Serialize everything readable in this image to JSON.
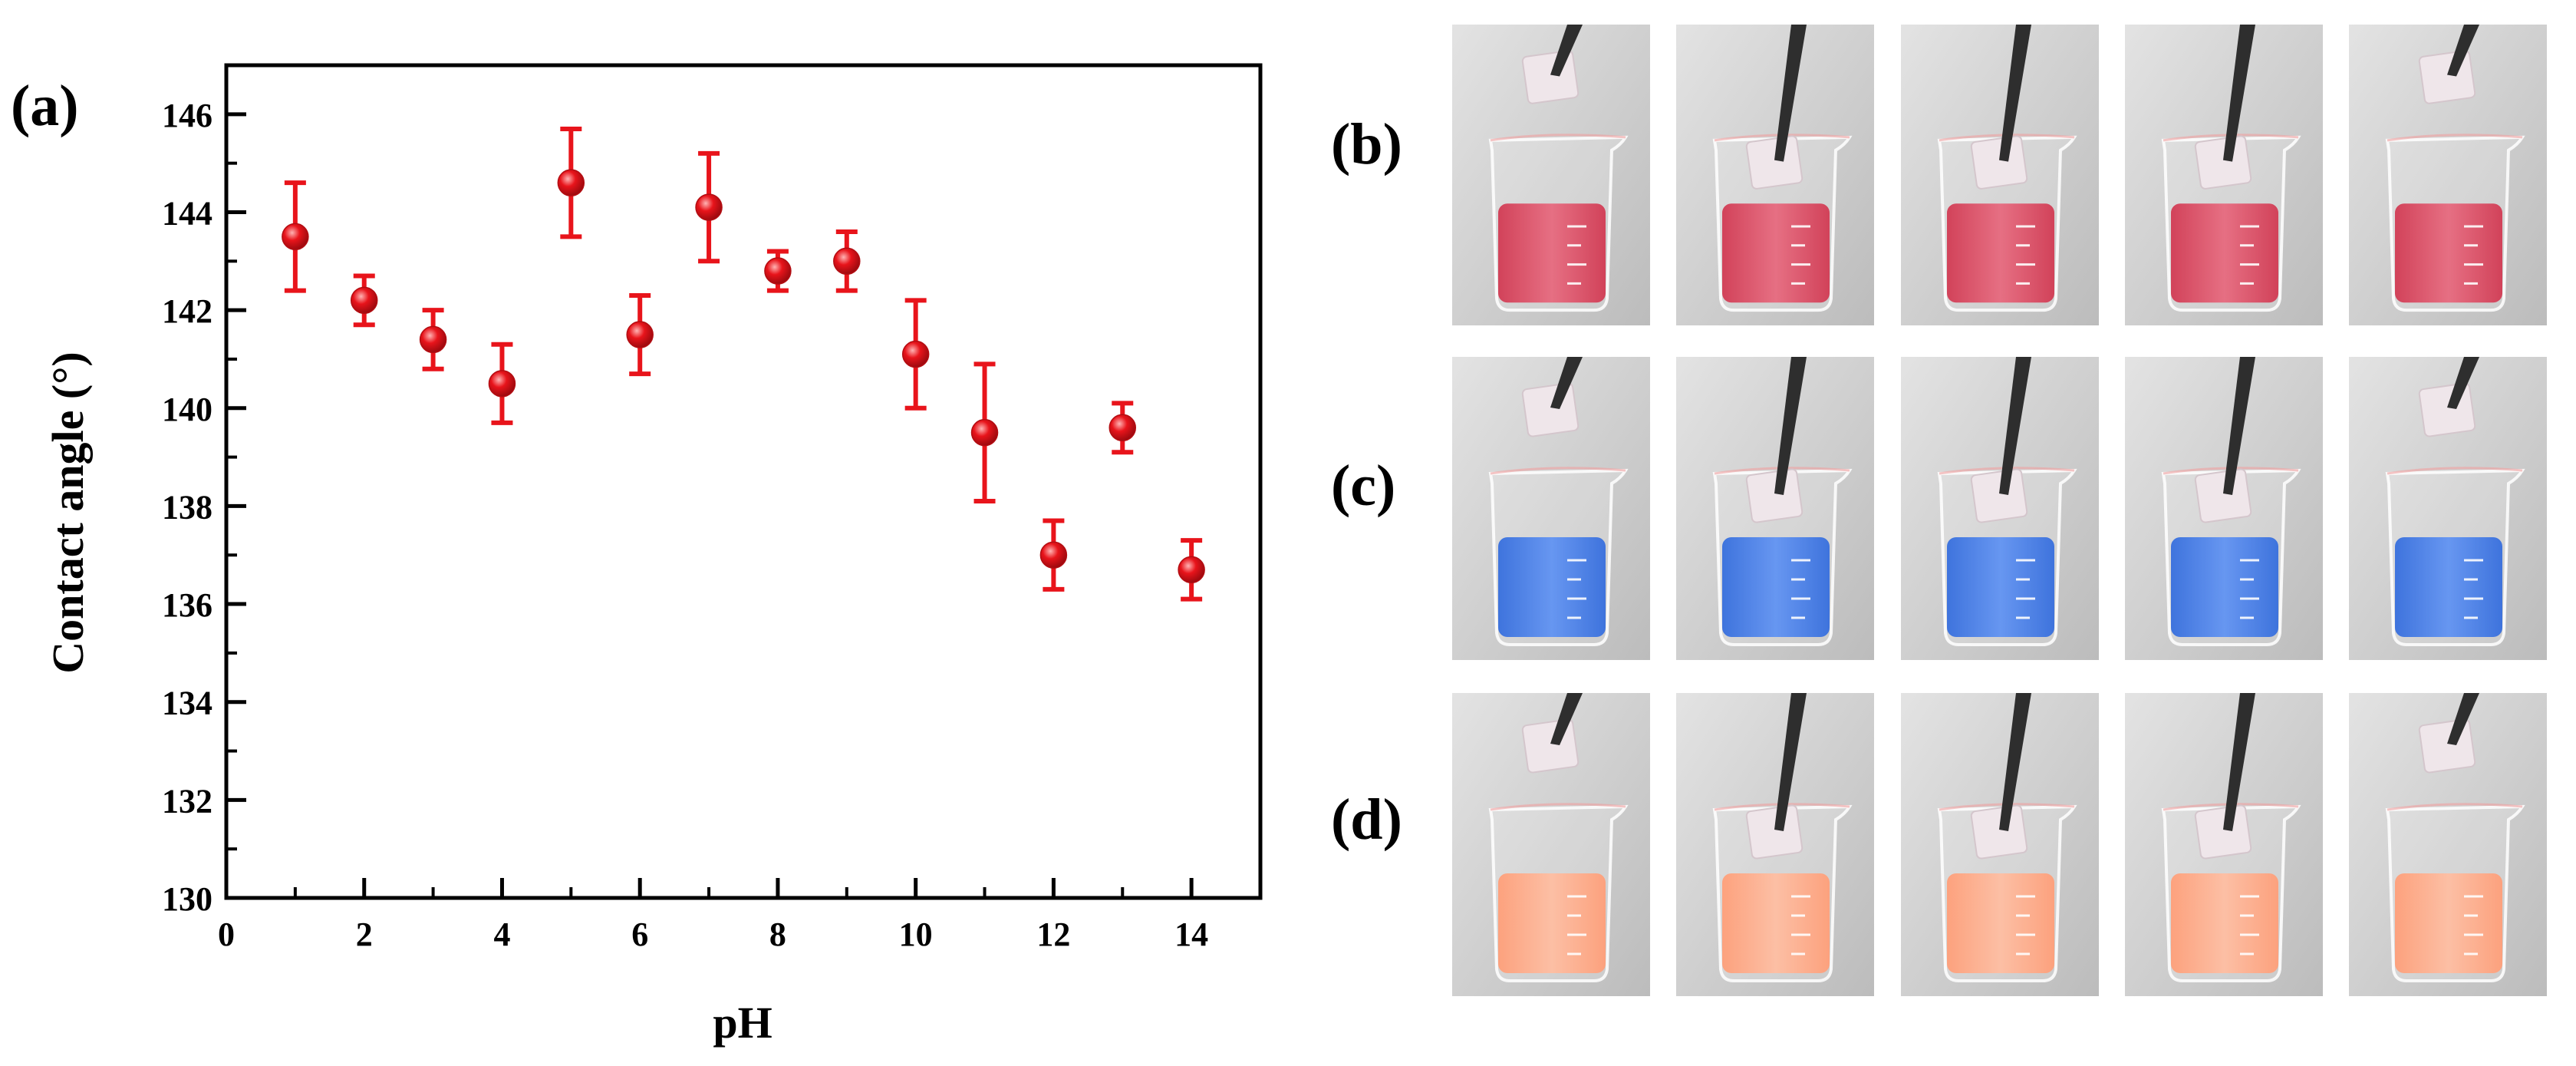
{
  "panels": {
    "a": "(a)",
    "b": "(b)",
    "c": "(c)",
    "d": "(d)"
  },
  "chart_data": {
    "type": "scatter",
    "title": "",
    "xlabel": "pH",
    "ylabel": "Contact angle (°)",
    "xlim": [
      0,
      15
    ],
    "ylim": [
      130,
      147
    ],
    "xticks": [
      0,
      2,
      4,
      6,
      8,
      10,
      12,
      14
    ],
    "yticks": [
      130,
      132,
      134,
      136,
      138,
      140,
      142,
      144,
      146
    ],
    "grid": false,
    "legend": "none",
    "marker_color": "#e8141b",
    "series": [
      {
        "x": [
          1,
          2,
          3,
          4,
          5,
          6,
          7,
          8,
          9,
          10,
          11,
          12,
          13,
          14
        ],
        "y": [
          143.5,
          142.2,
          141.4,
          140.5,
          144.6,
          141.5,
          144.1,
          142.8,
          143.0,
          141.1,
          139.5,
          137.0,
          139.6,
          136.7
        ],
        "error": [
          1.1,
          0.5,
          0.6,
          0.8,
          1.1,
          0.8,
          1.1,
          0.4,
          0.6,
          1.1,
          1.4,
          0.7,
          0.5,
          0.6
        ]
      }
    ]
  },
  "photo_rows": [
    {
      "label_key": "b",
      "liquid": "#c8102e",
      "liquid_light": "#e24a63"
    },
    {
      "label_key": "c",
      "liquid": "#0b4fd6",
      "liquid_light": "#3f7cf0"
    },
    {
      "label_key": "d",
      "liquid": "#ff8a5c",
      "liquid_light": "#ffb08e"
    }
  ],
  "photo_cube_states": [
    "above",
    "in",
    "in",
    "in",
    "above"
  ]
}
